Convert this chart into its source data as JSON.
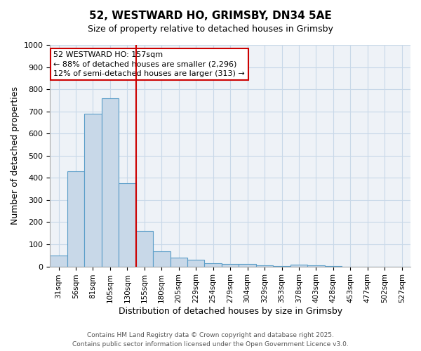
{
  "title1": "52, WESTWARD HO, GRIMSBY, DN34 5AE",
  "title2": "Size of property relative to detached houses in Grimsby",
  "xlabel": "Distribution of detached houses by size in Grimsby",
  "ylabel": "Number of detached properties",
  "bins": [
    "31sqm",
    "56sqm",
    "81sqm",
    "105sqm",
    "130sqm",
    "155sqm",
    "180sqm",
    "205sqm",
    "229sqm",
    "254sqm",
    "279sqm",
    "304sqm",
    "329sqm",
    "353sqm",
    "378sqm",
    "403sqm",
    "428sqm",
    "453sqm",
    "477sqm",
    "502sqm",
    "527sqm"
  ],
  "values": [
    50,
    430,
    690,
    760,
    375,
    160,
    70,
    40,
    30,
    15,
    12,
    10,
    5,
    2,
    8,
    5,
    1,
    0,
    0,
    0,
    0
  ],
  "bar_color": "#c8d8e8",
  "bar_edge_color": "#5a9dc8",
  "vline_x": 4.5,
  "vline_color": "#cc0000",
  "annotation_text": "52 WESTWARD HO: 157sqm\n← 88% of detached houses are smaller (2,296)\n12% of semi-detached houses are larger (313) →",
  "annotation_box_color": "#ffffff",
  "annotation_box_edge": "#cc0000",
  "ylim": [
    0,
    1000
  ],
  "yticks": [
    0,
    100,
    200,
    300,
    400,
    500,
    600,
    700,
    800,
    900,
    1000
  ],
  "grid_color": "#c8d8e8",
  "bg_color": "#eef2f7",
  "footer1": "Contains HM Land Registry data © Crown copyright and database right 2025.",
  "footer2": "Contains public sector information licensed under the Open Government Licence v3.0."
}
